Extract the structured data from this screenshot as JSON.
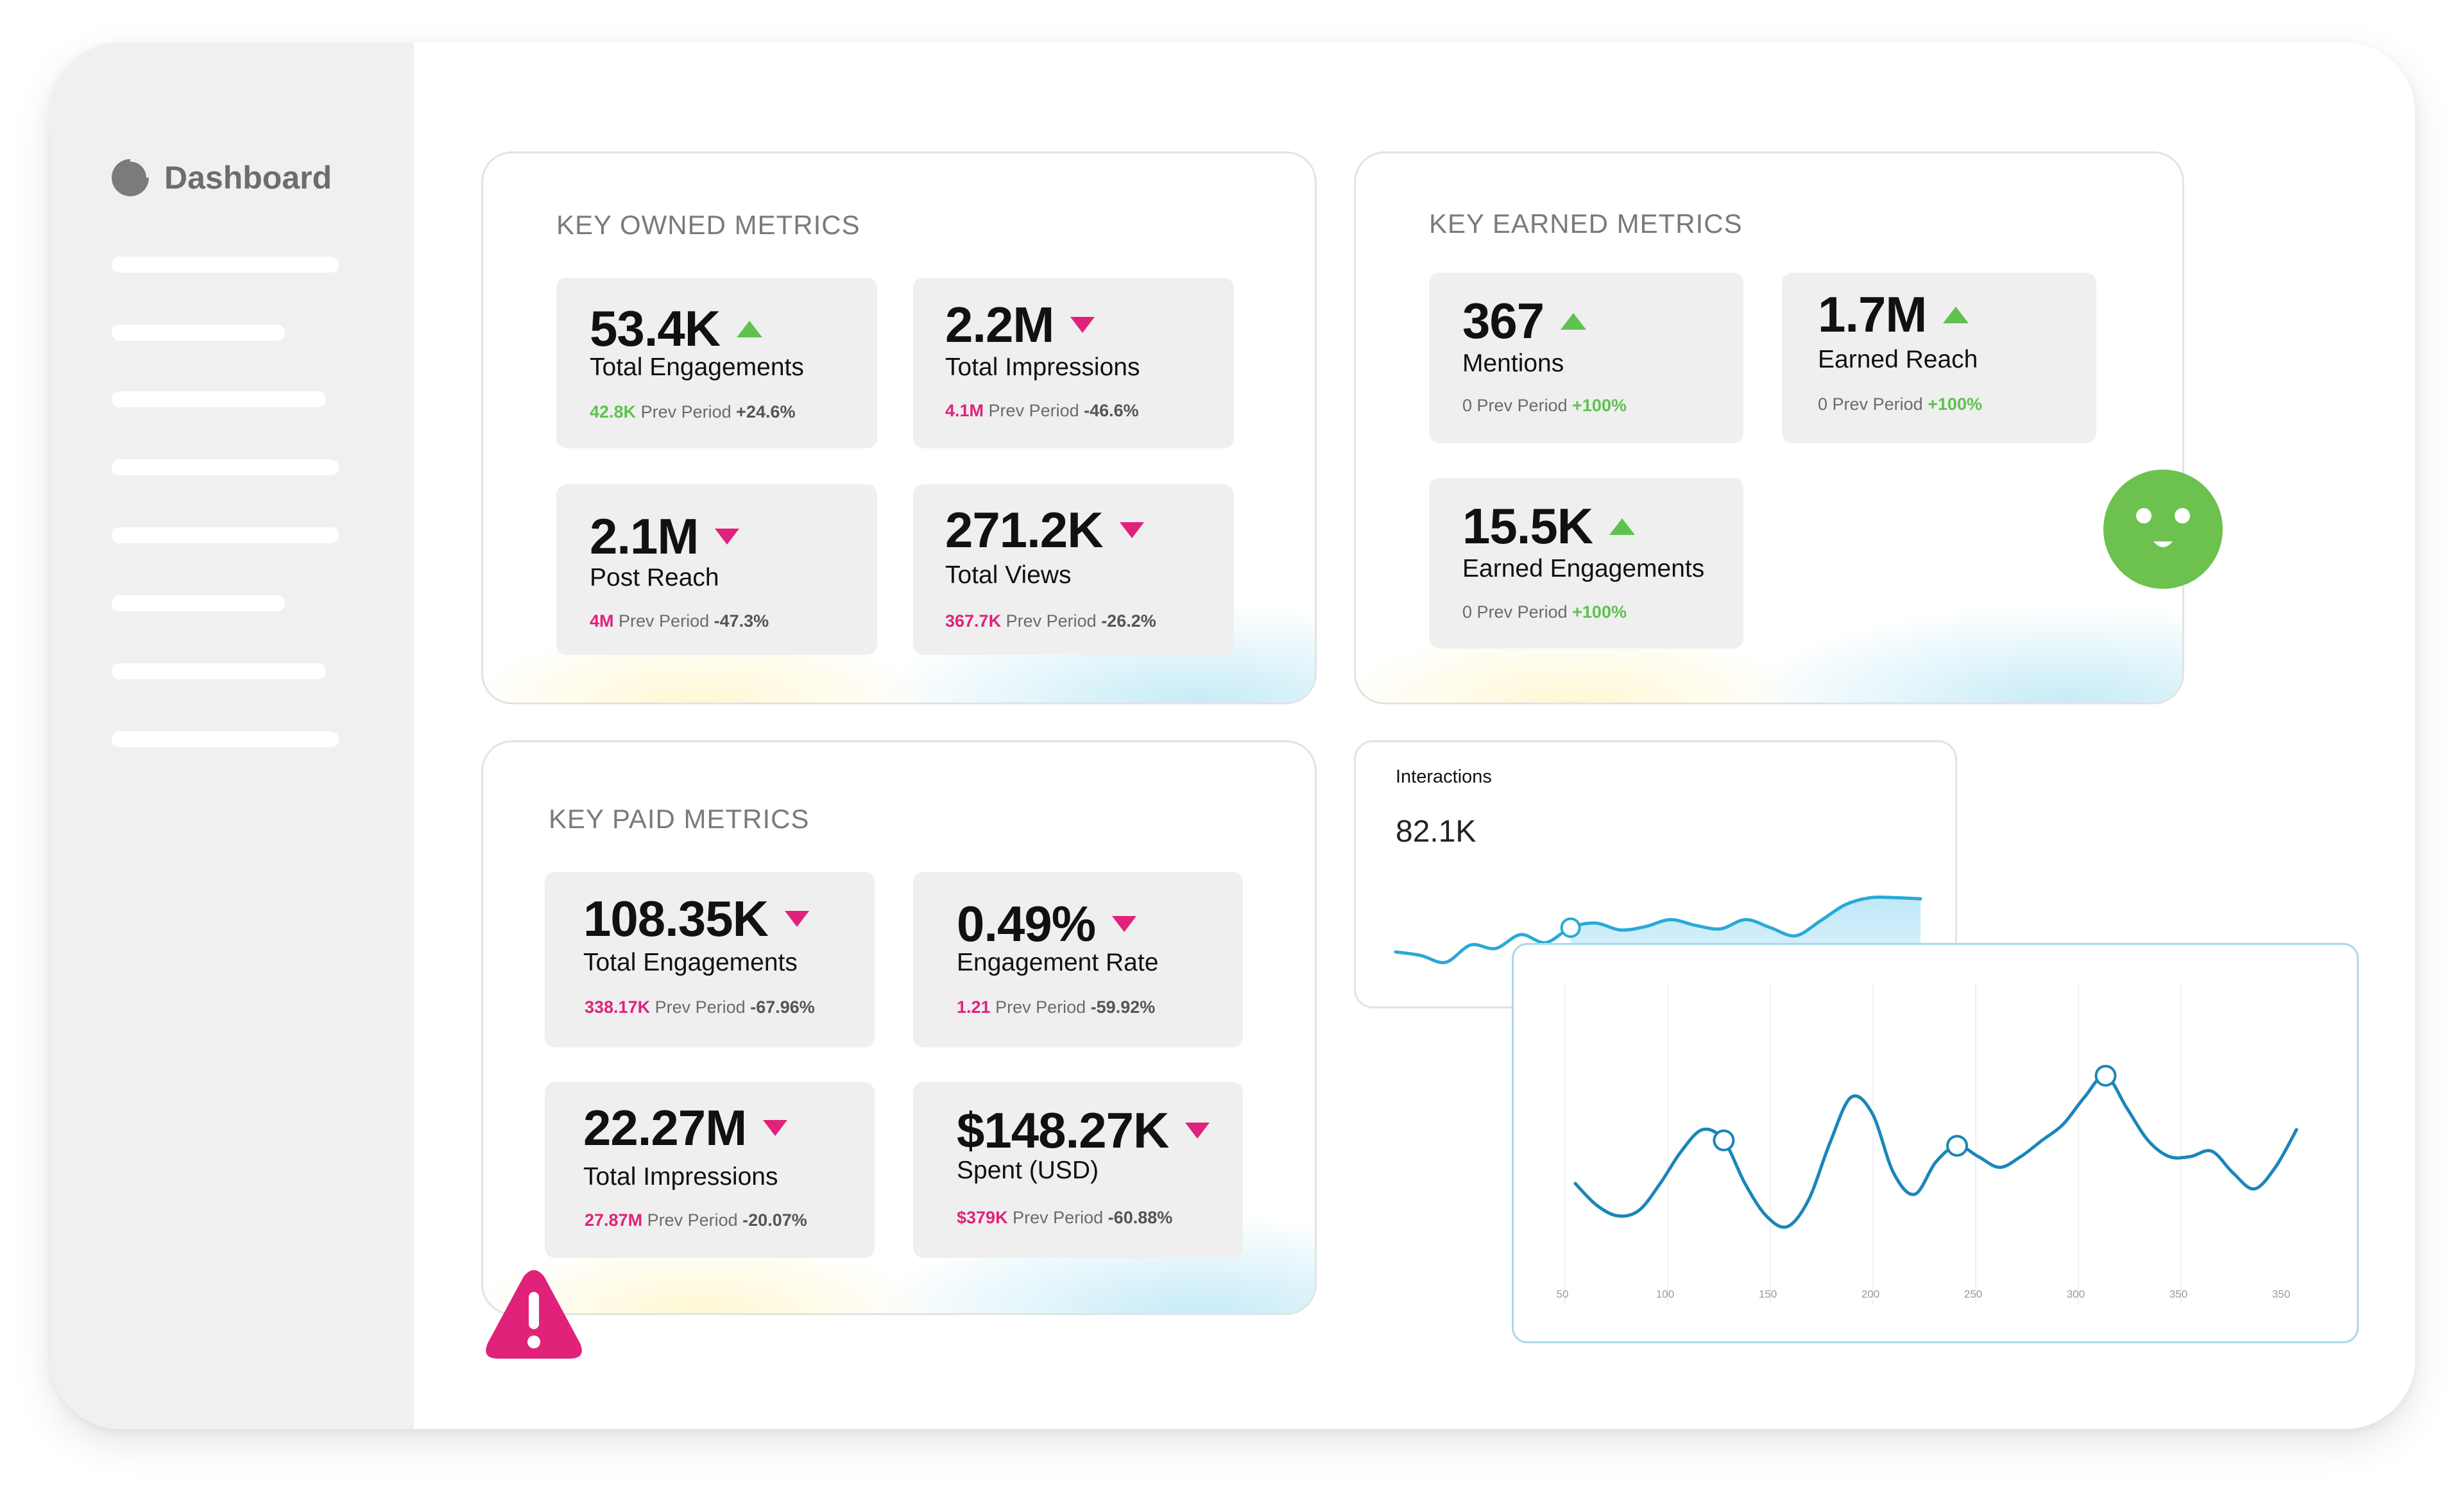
{
  "sidebar": {
    "title": "Dashboard",
    "icon": "pie-chart-icon"
  },
  "owned": {
    "title": "KEY OWNED METRICS",
    "metrics": [
      {
        "value": "53.4K",
        "trend": "up",
        "label": "Total Engagements",
        "prev": "42.8K",
        "prev_label": "Prev Period",
        "change": "+24.6%",
        "color": "#5fc24f"
      },
      {
        "value": "2.2M",
        "trend": "down",
        "label": "Total Impressions",
        "prev": "4.1M",
        "prev_label": "Prev Period",
        "change": "-46.6%",
        "color": "#e0227b"
      },
      {
        "value": "2.1M",
        "trend": "down",
        "label": "Post Reach",
        "prev": "4M",
        "prev_label": "Prev Period",
        "change": "-47.3%",
        "color": "#e0227b"
      },
      {
        "value": "271.2K",
        "trend": "down",
        "label": "Total Views",
        "prev": "367.7K",
        "prev_label": "Prev Period",
        "change": "-26.2%",
        "color": "#e0227b"
      }
    ]
  },
  "earned": {
    "title": "KEY EARNED METRICS",
    "metrics": [
      {
        "value": "367",
        "trend": "up",
        "label": "Mentions",
        "prev": "0",
        "prev_label": "Prev Period",
        "change": "+100%",
        "color": "#5fc24f"
      },
      {
        "value": "1.7M",
        "trend": "up",
        "label": "Earned Reach",
        "prev": "0",
        "prev_label": "Prev Period",
        "change": "+100%",
        "color": "#5fc24f"
      },
      {
        "value": "15.5K",
        "trend": "up",
        "label": "Earned Engagements",
        "prev": "0",
        "prev_label": "Prev Period",
        "change": "+100%",
        "color": "#5fc24f"
      }
    ]
  },
  "paid": {
    "title": "KEY PAID METRICS",
    "metrics": [
      {
        "value": "108.35K",
        "trend": "down",
        "label": "Total Engagements",
        "prev": "338.17K",
        "prev_label": "Prev Period",
        "change": "-67.96%",
        "color": "#e0227b"
      },
      {
        "value": "0.49%",
        "trend": "down",
        "label": "Engagement Rate",
        "prev": "1.21",
        "prev_label": "Prev Period",
        "change": "-59.92%",
        "color": "#e0227b"
      },
      {
        "value": "22.27M",
        "trend": "down",
        "label": "Total Impressions",
        "prev": "27.87M",
        "prev_label": "Prev Period",
        "change": "-20.07%",
        "color": "#e0227b"
      },
      {
        "value": "$148.27K",
        "trend": "down",
        "label": "Spent (USD)",
        "prev": "$379K",
        "prev_label": "Prev Period",
        "change": "-60.88%",
        "color": "#e0227b"
      }
    ]
  },
  "interactions": {
    "title": "Interactions",
    "value": "82.1K"
  },
  "badges": {
    "status_icon": "smiley-face-icon",
    "alert_icon": "warning-triangle-icon",
    "smile_color": "#6cc14f",
    "alert_color": "#e0227b"
  },
  "chart_data": [
    {
      "type": "area",
      "title": "Interactions",
      "series": [
        {
          "values": [
            3.5,
            3.2,
            2.6,
            4.1,
            3.8,
            5.0,
            4.3,
            5.6,
            6.0,
            5.4,
            5.7,
            6.3,
            5.8,
            5.5,
            6.3,
            5.6,
            4.9,
            6.2,
            7.6,
            8.2,
            8.2,
            8.1
          ]
        }
      ],
      "markers": [
        {
          "index": 7
        }
      ],
      "color": "#29a9d6",
      "fill": "#d6eff9"
    },
    {
      "type": "line",
      "x_ticks": [
        "50",
        "100",
        "150",
        "200",
        "250",
        "300",
        "350",
        "350"
      ],
      "x": [
        50,
        60,
        70,
        80,
        90,
        100,
        110,
        120,
        130,
        140,
        150,
        160,
        170,
        180,
        190,
        200,
        210,
        220,
        230,
        240,
        250,
        260,
        270,
        280,
        290,
        300,
        310,
        320,
        330,
        340,
        350,
        360,
        370,
        380,
        390
      ],
      "series": [
        {
          "values": [
            40,
            32,
            28,
            30,
            40,
            52,
            60,
            56,
            40,
            28,
            24,
            34,
            55,
            72,
            66,
            44,
            36,
            48,
            54,
            50,
            46,
            50,
            56,
            62,
            72,
            80,
            68,
            56,
            50,
            50,
            52,
            44,
            38,
            46,
            60
          ]
        }
      ],
      "markers": [
        {
          "x": 120
        },
        {
          "x": 230
        },
        {
          "x": 300
        }
      ],
      "color": "#1a86b8",
      "ylim": [
        0,
        100
      ],
      "grid": true
    }
  ]
}
